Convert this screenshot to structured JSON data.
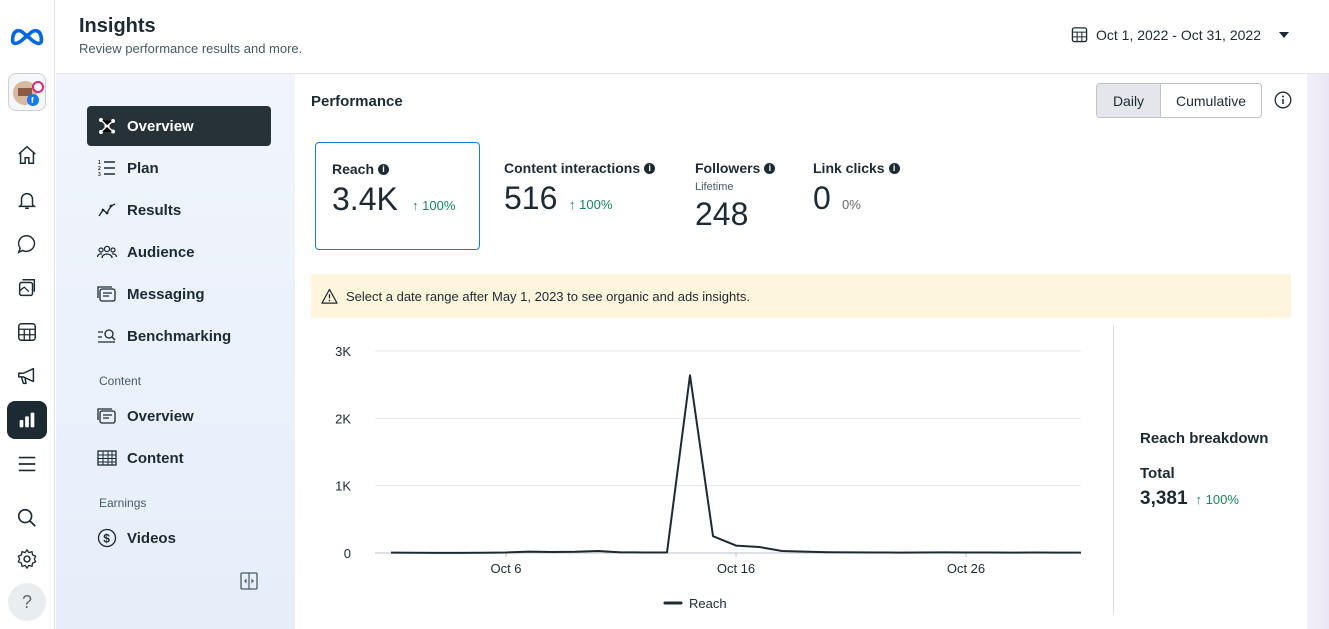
{
  "header": {
    "title": "Insights",
    "subtitle": "Review performance results and more.",
    "date_range": "Oct 1, 2022 - Oct 31, 2022"
  },
  "rail": {
    "icons": [
      "meta-logo-icon",
      "home-icon",
      "bell-icon",
      "chat-icon",
      "posts-icon",
      "calendar-grid-icon",
      "megaphone-icon",
      "insights-chart-icon",
      "menu-icon",
      "search-icon",
      "settings-icon",
      "help-icon"
    ],
    "help_label": "?"
  },
  "nav": {
    "items": [
      {
        "label": "Overview"
      },
      {
        "label": "Plan"
      },
      {
        "label": "Results"
      },
      {
        "label": "Audience"
      },
      {
        "label": "Messaging"
      },
      {
        "label": "Benchmarking"
      }
    ],
    "content_section": "Content",
    "content_items": [
      {
        "label": "Overview"
      },
      {
        "label": "Content"
      }
    ],
    "earnings_section": "Earnings",
    "earnings_items": [
      {
        "label": "Videos"
      }
    ]
  },
  "performance": {
    "title": "Performance",
    "toggle": {
      "daily": "Daily",
      "cumulative": "Cumulative",
      "selected": "Daily"
    },
    "cards": [
      {
        "label": "Reach",
        "value": "3.4K",
        "change": "100%",
        "trend": "up"
      },
      {
        "label": "Content interactions",
        "value": "516",
        "change": "100%",
        "trend": "up"
      },
      {
        "label": "Followers",
        "sublabel": "Lifetime",
        "value": "248"
      },
      {
        "label": "Link clicks",
        "value": "0",
        "change": "0%"
      }
    ],
    "warning": "Select a date range after May 1, 2023 to see organic and ads insights."
  },
  "breakdown": {
    "title": "Reach breakdown",
    "total_label": "Total",
    "total_value": "3,381",
    "total_change": "100%"
  },
  "colors": {
    "accent": "#1877f2",
    "positive": "#18865b",
    "dark": "#1c2b33",
    "warning_bg": "#fdf5dc"
  },
  "chart_data": {
    "type": "line",
    "x": [
      "Oct 1",
      "Oct 2",
      "Oct 3",
      "Oct 4",
      "Oct 5",
      "Oct 6",
      "Oct 7",
      "Oct 8",
      "Oct 9",
      "Oct 10",
      "Oct 11",
      "Oct 12",
      "Oct 13",
      "Oct 14",
      "Oct 15",
      "Oct 16",
      "Oct 17",
      "Oct 18",
      "Oct 19",
      "Oct 20",
      "Oct 21",
      "Oct 22",
      "Oct 23",
      "Oct 24",
      "Oct 25",
      "Oct 26",
      "Oct 27",
      "Oct 28",
      "Oct 29",
      "Oct 30",
      "Oct 31"
    ],
    "x_tick_labels": [
      "Oct 6",
      "Oct 16",
      "Oct 26"
    ],
    "series": [
      {
        "name": "Reach",
        "values": [
          5,
          3,
          2,
          2,
          4,
          8,
          20,
          15,
          18,
          30,
          10,
          8,
          8,
          2640,
          250,
          110,
          90,
          30,
          20,
          12,
          10,
          8,
          6,
          8,
          10,
          8,
          8,
          6,
          8,
          6,
          5
        ],
        "color": "#1c2b33"
      }
    ],
    "y_ticks": [
      0,
      1000,
      2000,
      3000
    ],
    "y_tick_labels": [
      "0",
      "1K",
      "2K",
      "3K"
    ],
    "ylim": [
      0,
      3000
    ],
    "grid": true,
    "legend": "bottom"
  }
}
